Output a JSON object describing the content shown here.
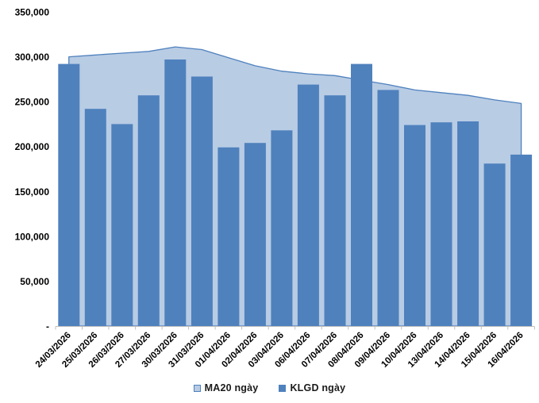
{
  "chart_data": {
    "type": "bar",
    "subtype": "bar-with-area-overlay",
    "title": "",
    "xlabel": "",
    "ylabel": "",
    "categories": [
      "24/03/2026",
      "25/03/2026",
      "26/03/2026",
      "27/03/2026",
      "30/03/2026",
      "31/03/2026",
      "01/04/2026",
      "02/04/2026",
      "03/04/2026",
      "06/04/2026",
      "07/04/2026",
      "08/04/2026",
      "09/04/2026",
      "10/04/2026",
      "13/04/2026",
      "14/04/2026",
      "15/04/2026",
      "16/04/2026"
    ],
    "series": [
      {
        "name": "MA20 ngày",
        "type": "area",
        "values": [
          300000,
          302000,
          304000,
          306000,
          311000,
          308000,
          299000,
          290000,
          284000,
          281000,
          279000,
          274000,
          269000,
          263000,
          260000,
          257000,
          252000,
          248000
        ]
      },
      {
        "name": "KLGD ngày",
        "type": "bar",
        "values": [
          292000,
          242000,
          225000,
          257000,
          297000,
          278000,
          199000,
          204000,
          218000,
          269000,
          257000,
          292000,
          263000,
          224000,
          227000,
          228000,
          181000,
          191000
        ]
      }
    ],
    "ylim": [
      0,
      350000
    ],
    "y_tick_interval": 50000,
    "y_tick_labels": [
      "-",
      "50,000",
      "100,000",
      "150,000",
      "200,000",
      "250,000",
      "300,000",
      "350,000"
    ],
    "grid": false,
    "legend_position": "bottom"
  },
  "colors": {
    "bar_fill": "#4F81BD",
    "area_fill": "#B8CCE4",
    "area_line": "#4F81BD",
    "axis_line": "#BFBFBF",
    "tick_mark": "#BFBFBF",
    "label_text": "#000000",
    "background": "#FFFFFF"
  }
}
